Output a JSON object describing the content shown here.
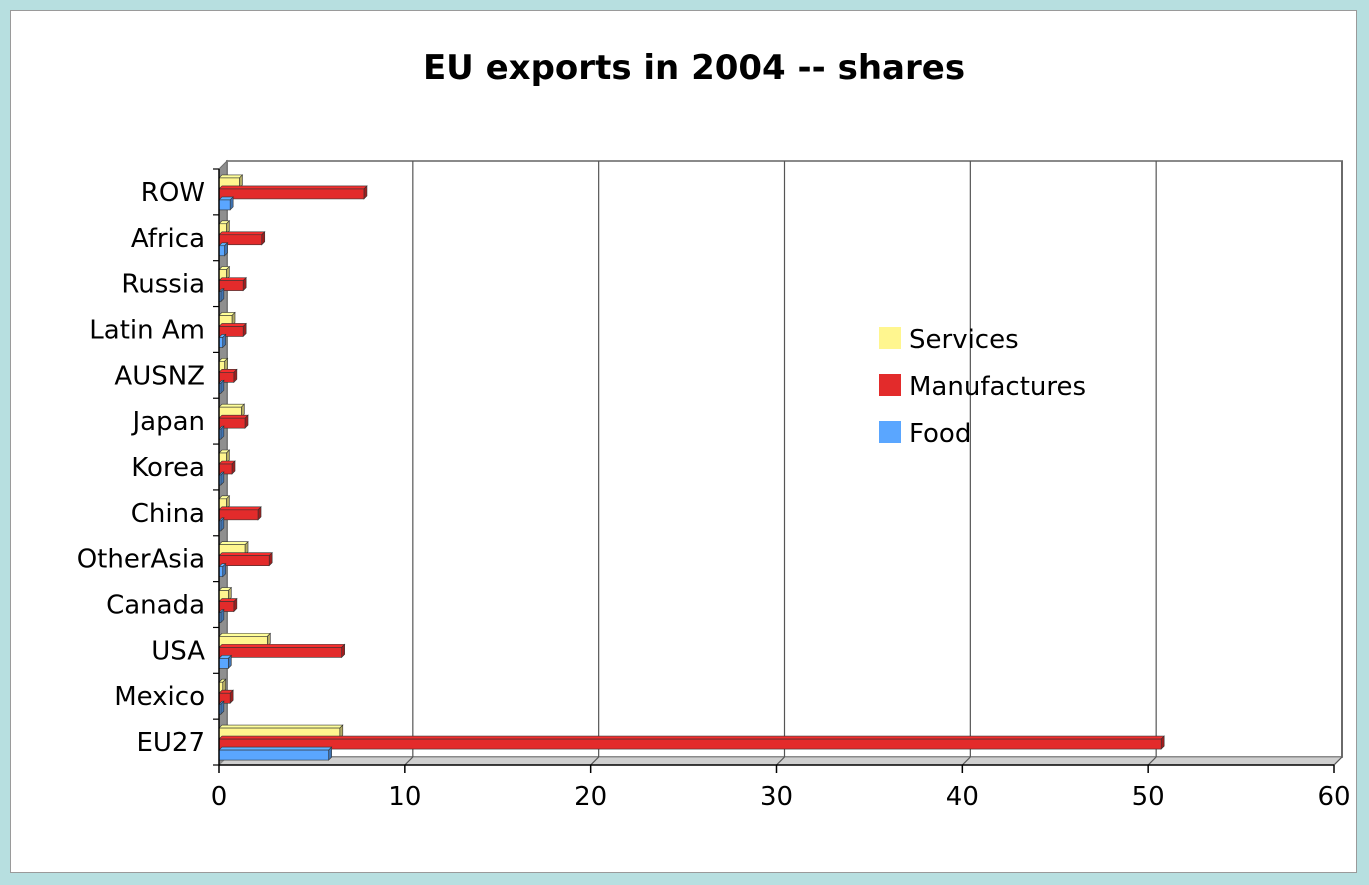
{
  "chart_data": {
    "type": "bar",
    "orientation": "horizontal",
    "title": "EU exports in 2004 -- shares",
    "categories": [
      "EU27",
      "Mexico",
      "USA",
      "Canada",
      "OtherAsia",
      "China",
      "Korea",
      "Japan",
      "AUSNZ",
      "Latin Am",
      "Russia",
      "Africa",
      "ROW"
    ],
    "series": [
      {
        "name": "Services",
        "color": "#fff68f",
        "values": [
          6.5,
          0.2,
          2.6,
          0.5,
          1.4,
          0.4,
          0.4,
          1.2,
          0.3,
          0.7,
          0.4,
          0.4,
          1.1
        ]
      },
      {
        "name": "Manufactures",
        "color": "#e32b2b",
        "values": [
          50.7,
          0.6,
          6.6,
          0.8,
          2.7,
          2.1,
          0.7,
          1.4,
          0.8,
          1.3,
          1.3,
          2.3,
          7.8
        ]
      },
      {
        "name": "Food",
        "color": "#5aa6ff",
        "values": [
          5.9,
          0.1,
          0.5,
          0.1,
          0.2,
          0.1,
          0.1,
          0.1,
          0.1,
          0.2,
          0.1,
          0.3,
          0.6
        ]
      }
    ],
    "xlim": [
      0,
      60
    ],
    "xticks": [
      0,
      10,
      20,
      30,
      40,
      50,
      60
    ],
    "grid": true,
    "legend": "right-center"
  }
}
